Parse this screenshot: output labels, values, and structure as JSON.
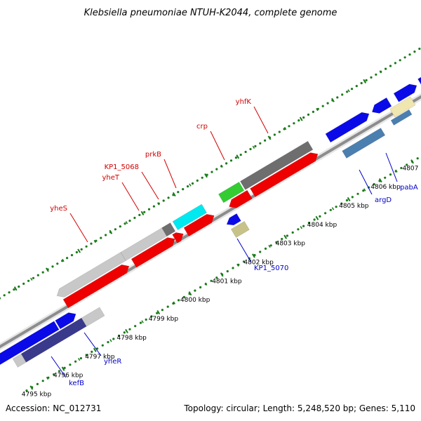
{
  "title": "Klebsiella pneumoniae NTUH-K2044, complete genome",
  "footer": {
    "accession": "Accession: NC_012731",
    "topology": "Topology: circular; Length: 5,248,520 bp; Genes: 5,110"
  },
  "colors": {
    "dot_green": "#1a7a1a",
    "backbone": "#8c8c8c",
    "label_red": "#d40000",
    "label_blue": "#0000cc",
    "gene_red": "#ee0000",
    "gene_blue": "#0a0ae8",
    "gene_light_gray": "#c8c8c8",
    "gene_dark_gray": "#6e6e6e",
    "gene_green": "#33cc33",
    "gene_cyan": "#00e8f0",
    "gene_navy": "#3a3a8c",
    "gene_khaki": "#c7c28a",
    "gene_steel": "#4a7fb0",
    "gene_pale": "#efe6b0"
  },
  "ticks": [
    "4795 kbp",
    "4796 kbp",
    "4797 kbp",
    "4798 kbp",
    "4799 kbp",
    "4800 kbp",
    "4801 kbp",
    "4802 kbp",
    "4803 kbp",
    "4804 kbp",
    "4805 kbp",
    "4806 kbp",
    "4807 kbp"
  ],
  "gene_labels": [
    {
      "name": "yheS",
      "strand": "top"
    },
    {
      "name": "yheT",
      "strand": "top"
    },
    {
      "name": "KP1_5068",
      "strand": "top"
    },
    {
      "name": "prkB",
      "strand": "top"
    },
    {
      "name": "crp",
      "strand": "top"
    },
    {
      "name": "yhfK",
      "strand": "top"
    },
    {
      "name": "kefB",
      "strand": "bottom"
    },
    {
      "name": "yheR",
      "strand": "bottom"
    },
    {
      "name": "KP1_5070",
      "strand": "bottom"
    },
    {
      "name": "argD",
      "strand": "bottom"
    },
    {
      "name": "pabA",
      "strand": "bottom"
    }
  ]
}
